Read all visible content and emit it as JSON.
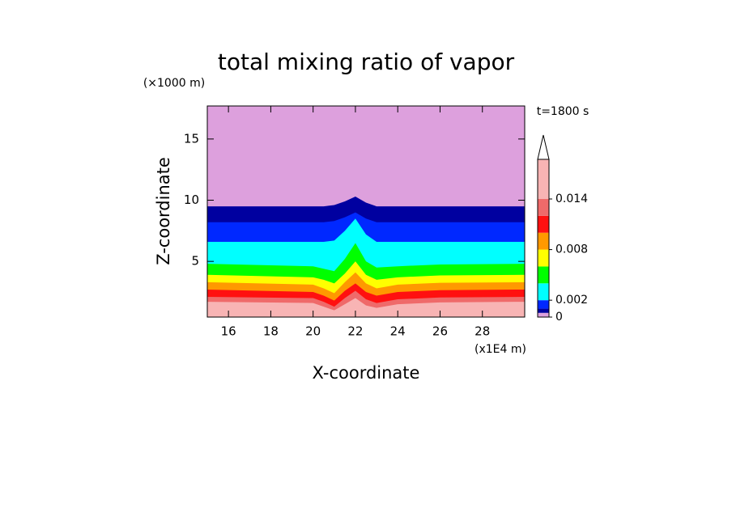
{
  "chart_data": {
    "type": "contour",
    "title": "total mixing ratio of vapor",
    "y_unit": "(×1000 m)",
    "x_unit": "(x1E4 m)",
    "xlabel": "X-coordinate",
    "ylabel": "Z-coordinate",
    "annotation": "t=1800 s",
    "xlim": [
      15,
      30
    ],
    "ylim": [
      0.45,
      17.7
    ],
    "xticks": [
      16,
      18,
      20,
      22,
      24,
      26,
      28
    ],
    "yticks": [
      5,
      10,
      15
    ],
    "x": [
      15,
      20,
      20.5,
      21,
      21.5,
      22,
      22.5,
      23,
      24,
      26,
      30
    ],
    "series": [
      {
        "level": 0.014,
        "values": [
          1.7,
          1.6,
          1.3,
          1.0,
          1.5,
          2.0,
          1.4,
          1.2,
          1.5,
          1.65,
          1.7
        ]
      },
      {
        "level": 0.012,
        "values": [
          2.1,
          2.0,
          1.7,
          1.3,
          2.0,
          2.6,
          1.9,
          1.6,
          1.9,
          2.05,
          2.1
        ]
      },
      {
        "level": 0.01,
        "values": [
          2.7,
          2.5,
          2.2,
          1.8,
          2.6,
          3.2,
          2.5,
          2.2,
          2.5,
          2.65,
          2.7
        ]
      },
      {
        "level": 0.008,
        "values": [
          3.3,
          3.1,
          2.8,
          2.4,
          3.3,
          4.1,
          3.2,
          2.8,
          3.1,
          3.25,
          3.3
        ]
      },
      {
        "level": 0.006,
        "values": [
          3.9,
          3.7,
          3.5,
          3.2,
          4.0,
          5.0,
          3.9,
          3.5,
          3.7,
          3.85,
          3.9
        ]
      },
      {
        "level": 0.004,
        "values": [
          4.8,
          4.6,
          4.4,
          4.2,
          5.2,
          6.5,
          5.0,
          4.5,
          4.6,
          4.75,
          4.8
        ]
      },
      {
        "level": 0.002,
        "values": [
          6.6,
          6.6,
          6.6,
          6.7,
          7.5,
          8.5,
          7.2,
          6.6,
          6.6,
          6.6,
          6.6
        ]
      },
      {
        "level": 0.001,
        "values": [
          8.2,
          8.2,
          8.2,
          8.3,
          8.6,
          9.0,
          8.5,
          8.2,
          8.2,
          8.2,
          8.2
        ]
      },
      {
        "level": 0.0005,
        "values": [
          9.5,
          9.5,
          9.5,
          9.6,
          9.9,
          10.3,
          9.8,
          9.5,
          9.5,
          9.5,
          9.5
        ]
      }
    ],
    "colorbar": {
      "clim": [
        0,
        0.0187
      ],
      "levels": [
        0,
        0.0005,
        0.001,
        0.002,
        0.004,
        0.006,
        0.008,
        0.01,
        0.012,
        0.014
      ],
      "colors": [
        "#dda0dd",
        "#0000a0",
        "#0028ff",
        "#00ffff",
        "#00ff00",
        "#ffff00",
        "#ff9900",
        "#ff1010",
        "#ef6a6a",
        "#f8b4b4"
      ],
      "ticks": [
        0,
        0.002,
        0.008,
        0.014
      ]
    }
  }
}
